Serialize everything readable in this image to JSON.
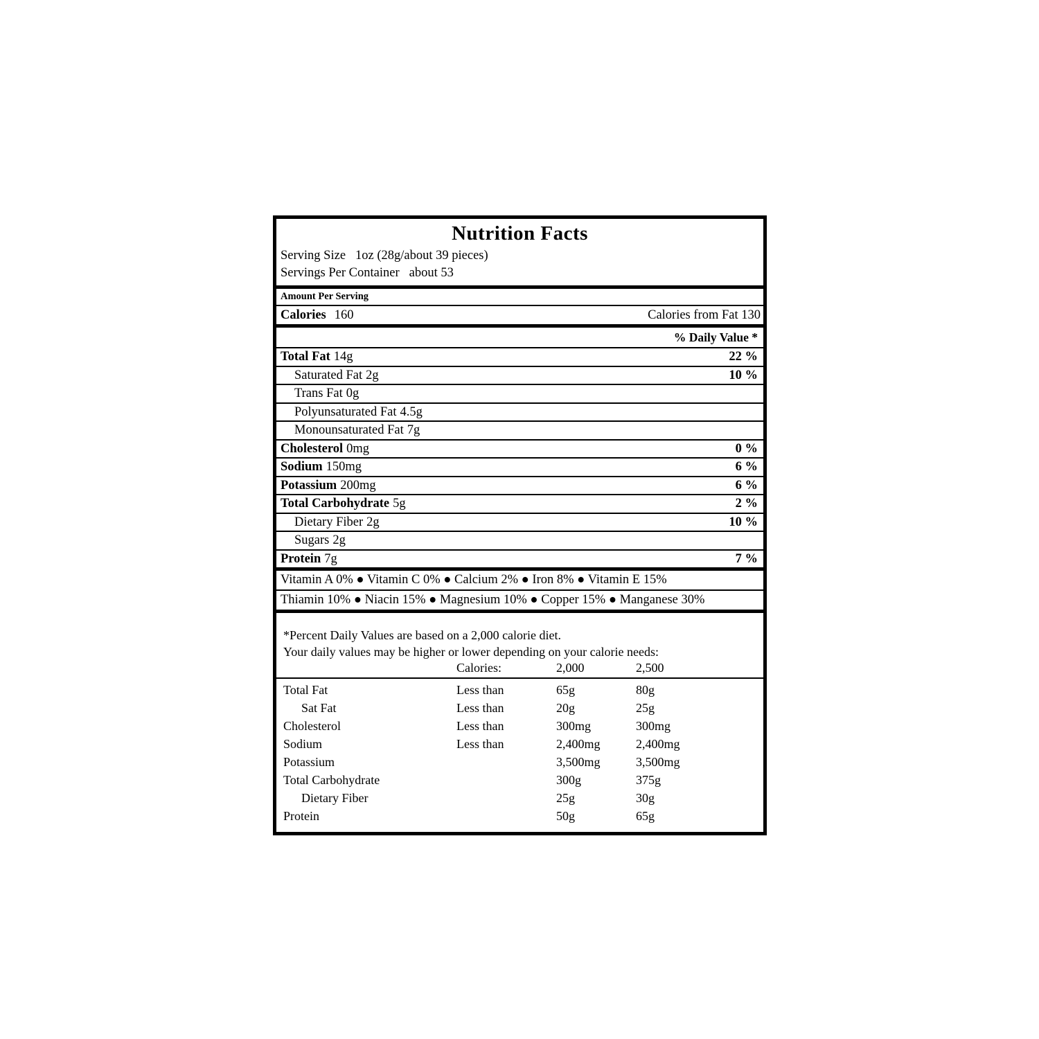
{
  "nutrition_label": {
    "title": "Nutrition Facts",
    "serving": {
      "size_label": "Serving Size",
      "size_value": "1oz (28g/about 39 pieces)",
      "per_container_label": "Servings Per Container",
      "per_container_value": "about 53"
    },
    "amount_per_serving": "Amount Per Serving",
    "calories": {
      "label": "Calories",
      "value": "160",
      "from_fat": "Calories from Fat 130"
    },
    "daily_value_header": "% Daily Value *",
    "nutrients": [
      {
        "name": "Total Fat",
        "amount": "14g",
        "daily_value": "22 %",
        "bold": true,
        "indent": false
      },
      {
        "name": "Saturated Fat",
        "amount": "2g",
        "daily_value": "10 %",
        "bold": false,
        "indent": true
      },
      {
        "name": "Trans Fat",
        "amount": "0g",
        "daily_value": "",
        "bold": false,
        "indent": true
      },
      {
        "name": "Polyunsaturated Fat",
        "amount": "4.5g",
        "daily_value": "",
        "bold": false,
        "indent": true
      },
      {
        "name": "Monounsaturated Fat",
        "amount": "7g",
        "daily_value": "",
        "bold": false,
        "indent": true
      },
      {
        "name": "Cholesterol",
        "amount": "0mg",
        "daily_value": "0 %",
        "bold": true,
        "indent": false
      },
      {
        "name": "Sodium",
        "amount": "150mg",
        "daily_value": "6 %",
        "bold": true,
        "indent": false
      },
      {
        "name": "Potassium",
        "amount": "200mg",
        "daily_value": "6 %",
        "bold": true,
        "indent": false
      },
      {
        "name": "Total Carbohydrate",
        "amount": "5g",
        "daily_value": "2 %",
        "bold": true,
        "indent": false
      },
      {
        "name": "Dietary Fiber",
        "amount": "2g",
        "daily_value": "10 %",
        "bold": false,
        "indent": true
      },
      {
        "name": "Sugars",
        "amount": "2g",
        "daily_value": "",
        "bold": false,
        "indent": true
      },
      {
        "name": "Protein",
        "amount": "7g",
        "daily_value": "7 %",
        "bold": true,
        "indent": false
      }
    ],
    "micronutrient_lines": [
      "Vitamin A 0% ● Vitamin C 0% ● Calcium 2% ● Iron 8% ● Vitamin E 15%",
      "Thiamin 10% ● Niacin 15% ● Magnesium 10% ● Copper 15% ● Manganese 30%"
    ],
    "footnote": {
      "line1": "*Percent Daily Values are based on a 2,000 calorie diet.",
      "line2": "Your daily values may be higher or lower depending on your calorie needs:",
      "columns_header": {
        "label": "Calories:",
        "col_2000": "2,000",
        "col_2500": "2,500"
      },
      "rows": [
        {
          "name": "Total Fat",
          "qualifier": "Less than",
          "v2000": "65g",
          "v2500": "80g",
          "indent": false
        },
        {
          "name": "Sat Fat",
          "qualifier": "Less than",
          "v2000": "20g",
          "v2500": "25g",
          "indent": true
        },
        {
          "name": "Cholesterol",
          "qualifier": "Less than",
          "v2000": "300mg",
          "v2500": "300mg",
          "indent": false
        },
        {
          "name": "Sodium",
          "qualifier": "Less than",
          "v2000": "2,400mg",
          "v2500": "2,400mg",
          "indent": false
        },
        {
          "name": "Potassium",
          "qualifier": "",
          "v2000": "3,500mg",
          "v2500": "3,500mg",
          "indent": false
        },
        {
          "name": "Total Carbohydrate",
          "qualifier": "",
          "v2000": "300g",
          "v2500": "375g",
          "indent": false
        },
        {
          "name": "Dietary Fiber",
          "qualifier": "",
          "v2000": "25g",
          "v2500": "30g",
          "indent": true
        },
        {
          "name": "Protein",
          "qualifier": "",
          "v2000": "50g",
          "v2500": "65g",
          "indent": false
        }
      ]
    }
  }
}
